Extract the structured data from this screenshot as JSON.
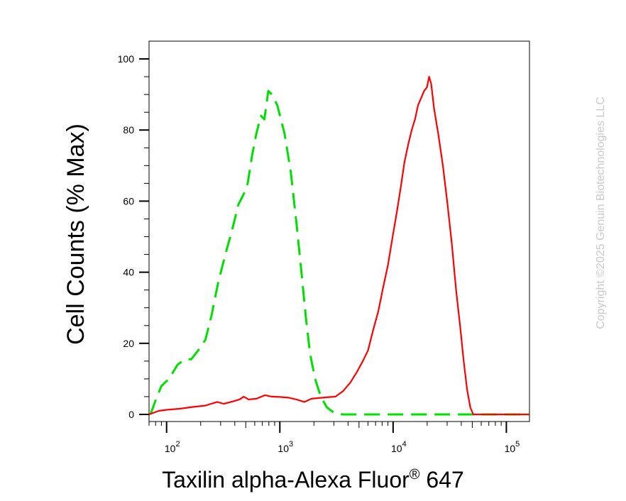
{
  "chart_data": {
    "type": "line",
    "xlabel": "Taxilin alpha-Alexa Fluor",
    "xlabel_superscript": "®",
    "xlabel_suffix": " 647",
    "ylabel": "Cell Counts (% Max)",
    "x_scale": "log",
    "xlim": [
      70,
      160000
    ],
    "ylim": [
      -2,
      105
    ],
    "x_ticks": [
      {
        "base": "10",
        "exp": "2",
        "value": 100
      },
      {
        "base": "10",
        "exp": "3",
        "value": 1000
      },
      {
        "base": "10",
        "exp": "4",
        "value": 10000
      },
      {
        "base": "10",
        "exp": "5",
        "value": 100000
      }
    ],
    "y_ticks": [
      "0",
      "20",
      "40",
      "60",
      "80",
      "100"
    ],
    "grid": false,
    "series": [
      {
        "color": "#00e000",
        "style": "dashed",
        "points": [
          [
            72,
            0
          ],
          [
            80,
            4
          ],
          [
            90,
            8
          ],
          [
            105,
            10
          ],
          [
            125,
            14
          ],
          [
            145,
            15.5
          ],
          [
            165,
            15.5
          ],
          [
            190,
            18
          ],
          [
            220,
            21
          ],
          [
            250,
            28
          ],
          [
            285,
            37
          ],
          [
            330,
            45
          ],
          [
            380,
            52
          ],
          [
            430,
            59
          ],
          [
            480,
            62
          ],
          [
            520,
            65
          ],
          [
            570,
            73
          ],
          [
            620,
            79
          ],
          [
            680,
            84
          ],
          [
            730,
            83
          ],
          [
            790,
            91
          ],
          [
            850,
            90
          ],
          [
            950,
            87
          ],
          [
            1100,
            79
          ],
          [
            1250,
            68
          ],
          [
            1400,
            54
          ],
          [
            1550,
            40
          ],
          [
            1700,
            27
          ],
          [
            1850,
            17
          ],
          [
            2050,
            10
          ],
          [
            2300,
            5
          ],
          [
            2600,
            2
          ],
          [
            3000,
            0.5
          ],
          [
            3600,
            0
          ],
          [
            10000,
            0
          ],
          [
            160000,
            0
          ]
        ]
      },
      {
        "color": "#ff0000",
        "style": "solid",
        "points": [
          [
            70,
            0
          ],
          [
            85,
            1
          ],
          [
            100,
            1.3
          ],
          [
            130,
            1.6
          ],
          [
            170,
            2.1
          ],
          [
            220,
            2.5
          ],
          [
            280,
            3.5
          ],
          [
            320,
            3
          ],
          [
            380,
            3.6
          ],
          [
            440,
            4.2
          ],
          [
            480,
            5
          ],
          [
            530,
            4.2
          ],
          [
            620,
            4.4
          ],
          [
            740,
            5.4
          ],
          [
            850,
            5
          ],
          [
            1000,
            4.9
          ],
          [
            1200,
            4.7
          ],
          [
            1400,
            4.2
          ],
          [
            1650,
            3.5
          ],
          [
            1900,
            4.4
          ],
          [
            2200,
            4.6
          ],
          [
            2600,
            4.8
          ],
          [
            3100,
            5
          ],
          [
            3600,
            6.5
          ],
          [
            4200,
            9
          ],
          [
            4800,
            12
          ],
          [
            5400,
            15
          ],
          [
            6000,
            18
          ],
          [
            6700,
            24
          ],
          [
            7400,
            29
          ],
          [
            8200,
            36
          ],
          [
            9000,
            42
          ],
          [
            9900,
            50
          ],
          [
            10800,
            57
          ],
          [
            11700,
            64
          ],
          [
            12600,
            71
          ],
          [
            13600,
            76
          ],
          [
            14600,
            80
          ],
          [
            15600,
            83
          ],
          [
            16600,
            87
          ],
          [
            17700,
            89
          ],
          [
            18800,
            91
          ],
          [
            19900,
            92
          ],
          [
            20800,
            95
          ],
          [
            21700,
            93
          ],
          [
            23000,
            86
          ],
          [
            25000,
            79
          ],
          [
            27500,
            70
          ],
          [
            30000,
            60
          ],
          [
            33000,
            48
          ],
          [
            36000,
            35
          ],
          [
            39000,
            25
          ],
          [
            42000,
            15
          ],
          [
            45000,
            7
          ],
          [
            48000,
            2
          ],
          [
            51000,
            0
          ],
          [
            160000,
            0
          ]
        ]
      }
    ]
  },
  "copyright": "Copyright ©2025 Genuin Biotechnologies LLC"
}
